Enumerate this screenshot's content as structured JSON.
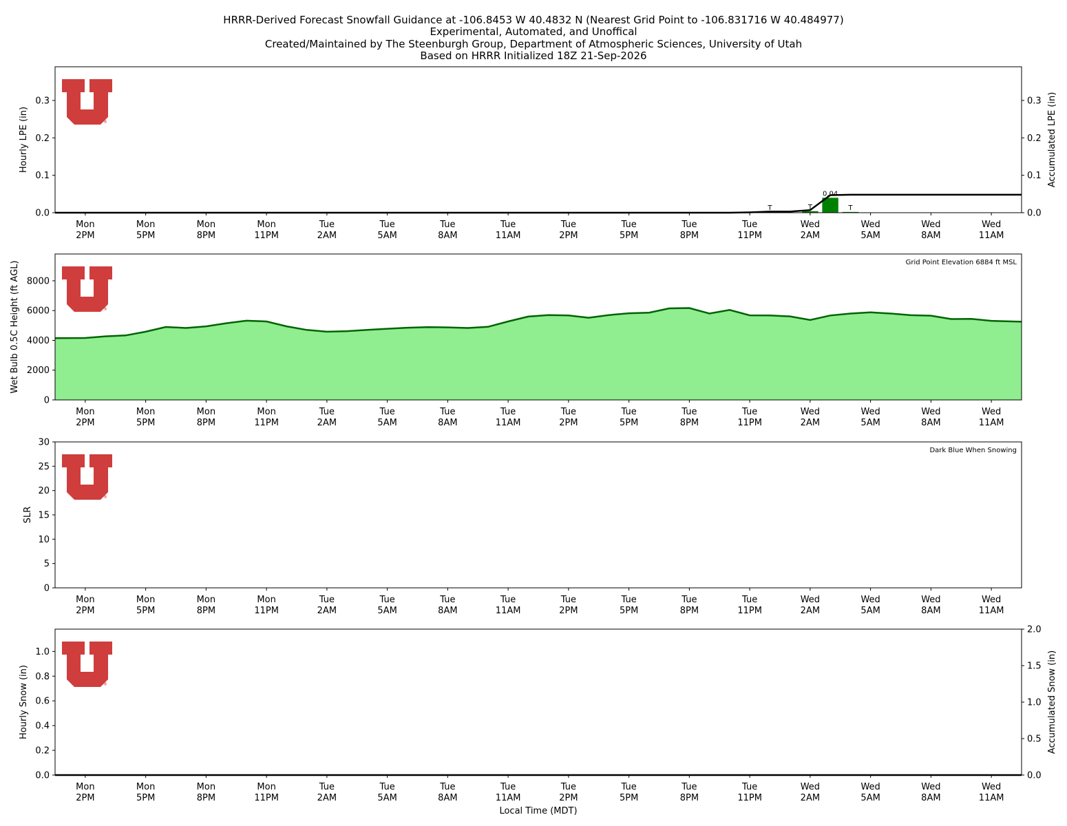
{
  "title_lines": [
    "HRRR-Derived Forecast Snowfall Guidance at -106.8453 W 40.4832 N (Nearest Grid Point to -106.831716 W 40.484977)",
    "Experimental, Automated, and Unoffical",
    "Created/Maintained by The Steenburgh Group, Department of Atmospheric Sciences, University of Utah",
    "Based on HRRR Initialized 18Z 21-Sep-2026"
  ],
  "logo": {
    "name": "university-of-utah-u-logo",
    "color": "#cc3333",
    "mark": "®"
  },
  "x_axis": {
    "label": "Local Time (MDT)",
    "tick_labels": [
      [
        "Mon",
        "2PM"
      ],
      [
        "Mon",
        "5PM"
      ],
      [
        "Mon",
        "8PM"
      ],
      [
        "Mon",
        "11PM"
      ],
      [
        "Tue",
        "2AM"
      ],
      [
        "Tue",
        "5AM"
      ],
      [
        "Tue",
        "8AM"
      ],
      [
        "Tue",
        "11AM"
      ],
      [
        "Tue",
        "2PM"
      ],
      [
        "Tue",
        "5PM"
      ],
      [
        "Tue",
        "8PM"
      ],
      [
        "Tue",
        "11PM"
      ],
      [
        "Wed",
        "2AM"
      ],
      [
        "Wed",
        "5AM"
      ],
      [
        "Wed",
        "8AM"
      ],
      [
        "Wed",
        "11AM"
      ]
    ]
  },
  "chart_data": [
    {
      "type": "bar",
      "name": "lpe",
      "ylabel": "Hourly LPE (in)",
      "y2label": "Accumulated LPE (in)",
      "ylim": [
        0,
        0.39
      ],
      "yticks": [
        0.0,
        0.1,
        0.2,
        0.3
      ],
      "y2ticks": [
        0.0,
        0.1,
        0.2,
        0.3
      ],
      "bar_color": "#008000",
      "line_color": "#000000",
      "bars": [
        {
          "hour_index": 35,
          "value": 0.002,
          "label": "T"
        },
        {
          "hour_index": 37,
          "value": 0.004,
          "label": "T"
        },
        {
          "hour_index": 38,
          "value": 0.04,
          "label": "0.04"
        },
        {
          "hour_index": 39,
          "value": 0.002,
          "label": "T"
        }
      ],
      "accumulated": [
        0,
        0,
        0,
        0,
        0,
        0,
        0,
        0,
        0,
        0,
        0,
        0,
        0,
        0,
        0,
        0,
        0,
        0,
        0,
        0,
        0,
        0,
        0,
        0,
        0,
        0,
        0,
        0,
        0,
        0,
        0,
        0,
        0,
        0,
        0.001,
        0.003,
        0.003,
        0.007,
        0.047,
        0.048,
        0.048,
        0.048,
        0.048,
        0.048,
        0.048,
        0.048,
        0.048,
        0.048
      ]
    },
    {
      "type": "area",
      "name": "wet-bulb-height",
      "ylabel": "Wet Bulb 0.5C Height (ft AGL)",
      "ylim": [
        0,
        9800
      ],
      "yticks": [
        0,
        2000,
        4000,
        6000,
        8000
      ],
      "annotation": "Grid Point Elevation 6884 ft MSL",
      "fill_color": "#90ee90",
      "line_color": "#006400",
      "values": [
        4150,
        4160,
        4270,
        4330,
        4580,
        4900,
        4830,
        4940,
        5150,
        5320,
        5270,
        4940,
        4700,
        4580,
        4620,
        4700,
        4780,
        4850,
        4890,
        4870,
        4830,
        4910,
        5270,
        5600,
        5700,
        5670,
        5520,
        5700,
        5820,
        5860,
        6150,
        6170,
        5800,
        6040,
        5680,
        5670,
        5610,
        5370,
        5670,
        5800,
        5880,
        5800,
        5690,
        5660,
        5430,
        5440,
        5310,
        5250
      ]
    },
    {
      "type": "bar",
      "name": "slr",
      "ylabel": "SLR",
      "ylim": [
        0,
        30
      ],
      "yticks": [
        0,
        5,
        10,
        15,
        20,
        25,
        30
      ],
      "annotation": "Dark Blue When Snowing",
      "values": []
    },
    {
      "type": "bar",
      "name": "snow",
      "ylabel": "Hourly Snow (in)",
      "y2label": "Accumulated Snow (in)",
      "ylim": [
        0,
        1.18
      ],
      "yticks": [
        0.0,
        0.2,
        0.4,
        0.6,
        0.8,
        1.0
      ],
      "y2lim": [
        0,
        2.0
      ],
      "y2ticks": [
        0.0,
        0.5,
        1.0,
        1.5,
        2.0
      ],
      "values": [],
      "accumulated": [
        0,
        0,
        0,
        0,
        0,
        0,
        0,
        0,
        0,
        0,
        0,
        0,
        0,
        0,
        0,
        0,
        0,
        0,
        0,
        0,
        0,
        0,
        0,
        0,
        0,
        0,
        0,
        0,
        0,
        0,
        0,
        0,
        0,
        0,
        0,
        0,
        0,
        0,
        0,
        0,
        0,
        0,
        0,
        0,
        0,
        0,
        0,
        0
      ]
    }
  ]
}
